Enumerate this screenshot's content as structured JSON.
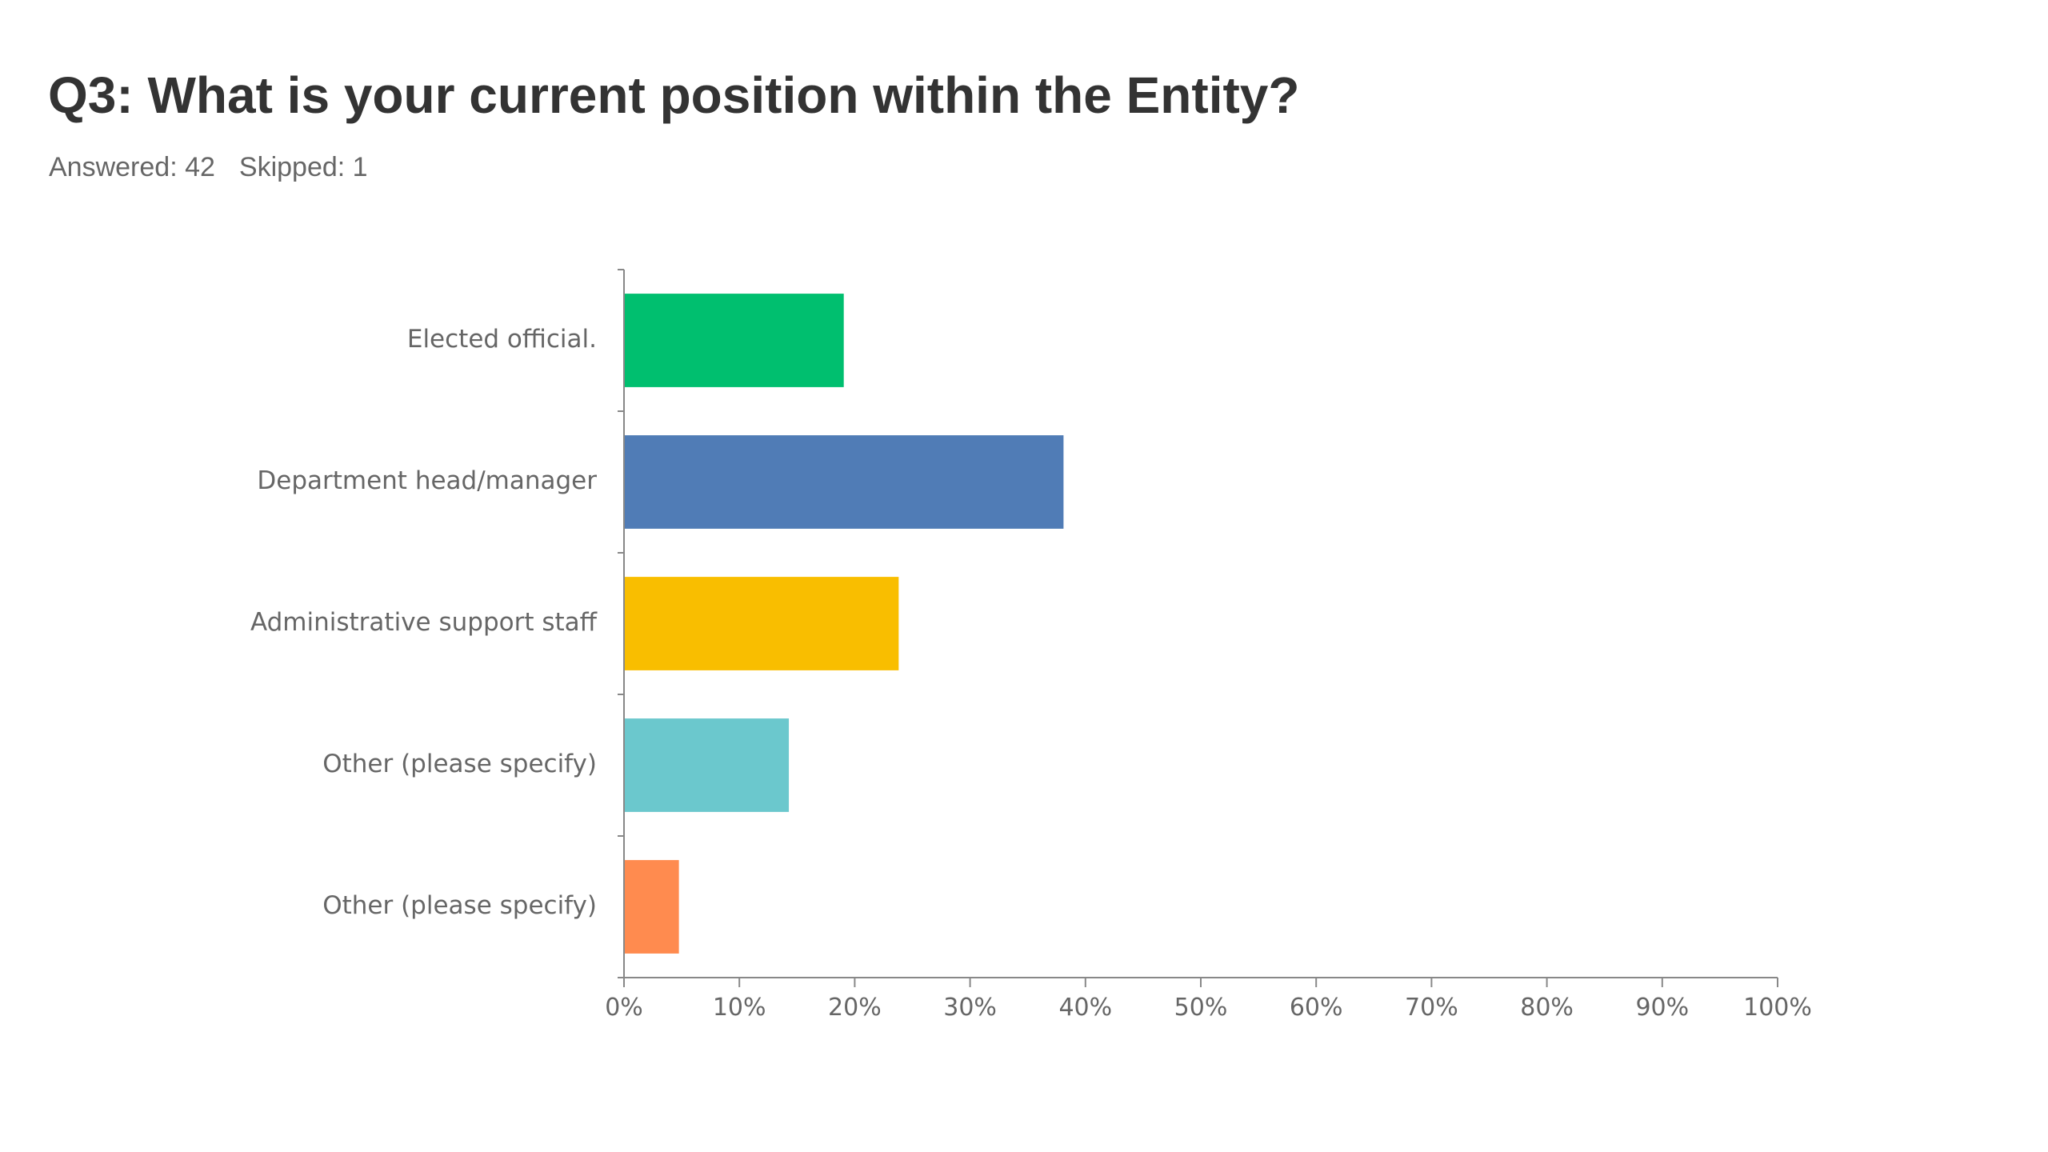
{
  "header": {
    "title": "Q3: What is your current position within the Entity?",
    "answered": "Answered: 42",
    "skipped": "Skipped: 1"
  },
  "chart_data": {
    "type": "bar",
    "orientation": "horizontal",
    "categories": [
      "Elected official.",
      "Department head/manager",
      "Administrative support staff",
      "Other (please specify)",
      "Other (please specify)"
    ],
    "values": [
      19.05,
      38.1,
      23.81,
      14.29,
      4.76
    ],
    "colors": [
      "#00bf6f",
      "#507cb6",
      "#f9be00",
      "#6bc8cd",
      "#ff8b4f"
    ],
    "xlim": [
      0,
      100
    ],
    "xticks": [
      "0%",
      "10%",
      "20%",
      "30%",
      "40%",
      "50%",
      "60%",
      "70%",
      "80%",
      "90%",
      "100%"
    ],
    "grid": false
  }
}
